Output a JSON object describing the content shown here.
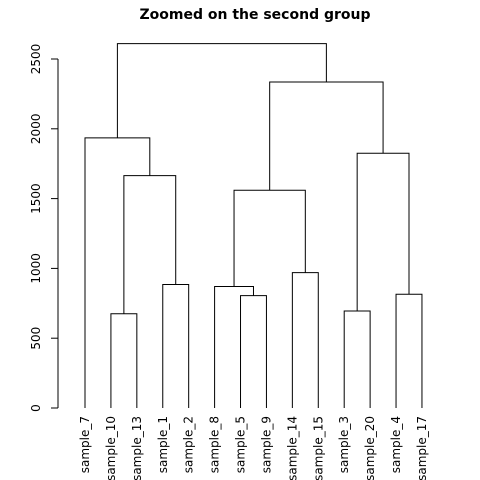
{
  "chart_data": {
    "type": "dendrogram",
    "title": "Zoomed on the second group",
    "ylabel": "",
    "ylim": [
      0,
      2500
    ],
    "yticks": [
      0,
      500,
      1000,
      1500,
      2000,
      2500
    ],
    "leaves": [
      "sample_7",
      "sample_10",
      "sample_13",
      "sample_1",
      "sample_2",
      "sample_8",
      "sample_5",
      "sample_9",
      "sample_14",
      "sample_15",
      "sample_3",
      "sample_20",
      "sample_4",
      "sample_17"
    ],
    "merges": [
      {
        "left": "L1",
        "right": "L2",
        "height": 675
      },
      {
        "left": "L3",
        "right": "L4",
        "height": 885
      },
      {
        "left": "L6",
        "right": "L7",
        "height": 805
      },
      {
        "left": "L8",
        "right": "L9",
        "height": 970
      },
      {
        "left": "L10",
        "right": "L11",
        "height": 695
      },
      {
        "left": "L12",
        "right": "L13",
        "height": 815
      },
      {
        "left": "M0",
        "right": "M1",
        "height": 1665
      },
      {
        "left": "L5",
        "right": "M2",
        "height": 870
      },
      {
        "left": "M7",
        "right": "M3",
        "height": 1560
      },
      {
        "left": "M4",
        "right": "M5",
        "height": 1825
      },
      {
        "left": "L0",
        "right": "M6",
        "height": 1935
      },
      {
        "left": "M8",
        "right": "M9",
        "height": 2335
      },
      {
        "left": "M10",
        "right": "M11",
        "height": 2610
      }
    ]
  }
}
